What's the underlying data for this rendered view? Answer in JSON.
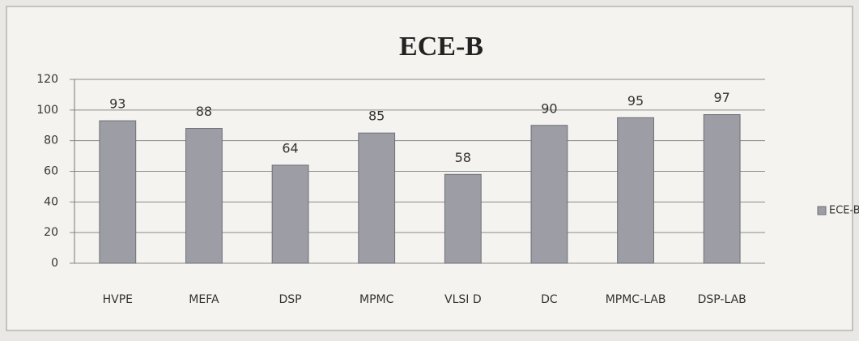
{
  "chart_data": {
    "type": "bar",
    "title": "ECE-B",
    "categories": [
      "HVPE",
      "MEFA",
      "DSP",
      "MPMC",
      "VLSI D",
      "DC",
      "MPMC-LAB",
      "DSP-LAB"
    ],
    "series": [
      {
        "name": "ECE-B",
        "color": "#9d9da6",
        "values": [
          93,
          88,
          64,
          85,
          58,
          90,
          95,
          97
        ]
      }
    ],
    "ylim": [
      0,
      120
    ],
    "yticks": [
      0,
      20,
      40,
      60,
      80,
      100,
      120
    ],
    "grid": true,
    "legend": "right"
  }
}
